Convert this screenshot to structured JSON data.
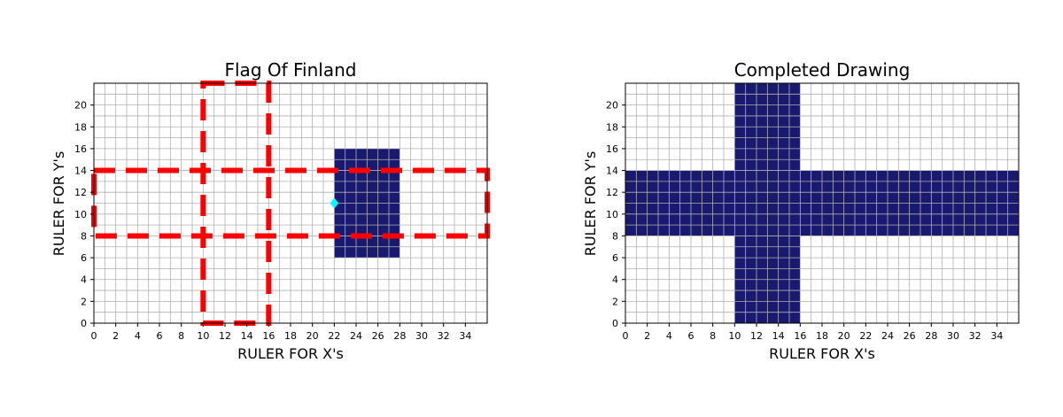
{
  "colors": {
    "flag_blue": "#191970",
    "guide_red": "#ff0000",
    "marker_cyan": "#00ffff",
    "grid": "#b0b0b0",
    "background": "#ffffff"
  },
  "chart_data": [
    {
      "type": "heatmap",
      "title": "Flag Of Finland",
      "xlabel": "RULER FOR X's",
      "ylabel": "RULER FOR Y's",
      "xlim": [
        0,
        36
      ],
      "ylim": [
        0,
        22
      ],
      "x_ticks": [
        0,
        2,
        4,
        6,
        8,
        10,
        12,
        14,
        16,
        18,
        20,
        22,
        24,
        26,
        28,
        30,
        32,
        34
      ],
      "y_ticks": [
        0,
        2,
        4,
        6,
        8,
        10,
        12,
        14,
        16,
        18,
        20
      ],
      "grid": true,
      "filled_rects": [
        {
          "x": 22,
          "y": 6,
          "width": 6,
          "height": 10
        }
      ],
      "guide_rects": [
        {
          "x": 0,
          "y": 8,
          "width": 36,
          "height": 6
        },
        {
          "x": 10,
          "y": 0,
          "width": 6,
          "height": 22
        }
      ],
      "markers": [
        {
          "x": 22,
          "y": 11,
          "shape": "diamond"
        }
      ]
    },
    {
      "type": "heatmap",
      "title": "Completed Drawing",
      "xlabel": "RULER FOR X's",
      "ylabel": "RULER FOR Y's",
      "xlim": [
        0,
        36
      ],
      "ylim": [
        0,
        22
      ],
      "x_ticks": [
        0,
        2,
        4,
        6,
        8,
        10,
        12,
        14,
        16,
        18,
        20,
        22,
        24,
        26,
        28,
        30,
        32,
        34
      ],
      "y_ticks": [
        0,
        2,
        4,
        6,
        8,
        10,
        12,
        14,
        16,
        18,
        20
      ],
      "grid": true,
      "filled_rects": [
        {
          "x": 0,
          "y": 8,
          "width": 36,
          "height": 6
        },
        {
          "x": 10,
          "y": 0,
          "width": 6,
          "height": 22
        }
      ],
      "guide_rects": [],
      "markers": []
    }
  ]
}
